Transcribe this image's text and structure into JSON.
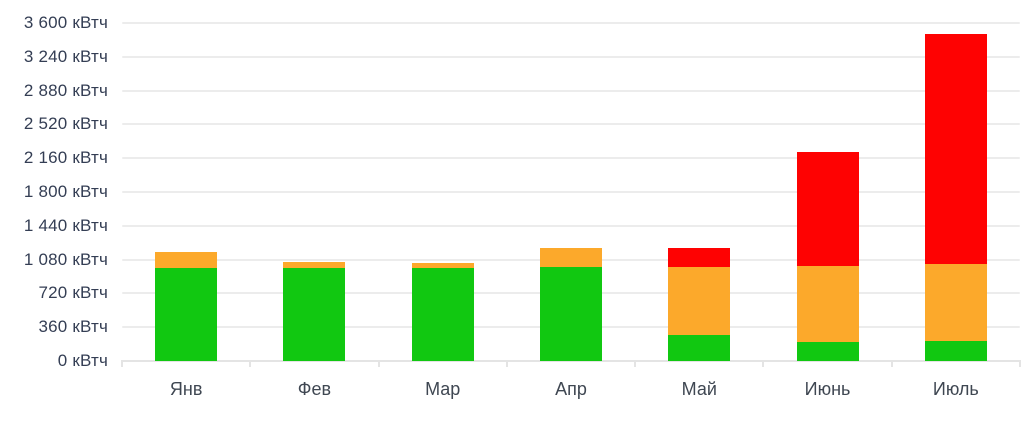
{
  "chart_data": {
    "type": "bar",
    "stacked": true,
    "title": "",
    "unit": "кВтч",
    "categories": [
      "Янв",
      "Фев",
      "Мар",
      "Апр",
      "Май",
      "Июнь",
      "Июль"
    ],
    "series": [
      {
        "name": "green-zone",
        "color": "#11c811",
        "values": [
          990,
          990,
          990,
          1000,
          280,
          200,
          210
        ]
      },
      {
        "name": "orange-zone",
        "color": "#fca92b",
        "values": [
          170,
          60,
          50,
          200,
          720,
          810,
          820
        ]
      },
      {
        "name": "red-zone",
        "color": "#fe0202",
        "values": [
          0,
          0,
          0,
          0,
          200,
          1220,
          2450
        ]
      }
    ],
    "totals": [
      1160,
      1050,
      1040,
      1200,
      1200,
      2230,
      3480
    ],
    "ylim": [
      0,
      3600
    ],
    "y_step": 360,
    "y_tick_labels": [
      "3 600 кВтч",
      "3 240 кВтч",
      "2 880 кВтч",
      "2 520 кВтч",
      "2 160 кВтч",
      "1 800 кВтч",
      "1 440 кВтч",
      "1 080 кВтч",
      "720 кВтч",
      "360 кВтч",
      "0 кВтч"
    ],
    "grid": true,
    "legend": "none"
  },
  "colors": {
    "background": "#ffffff",
    "gridline": "#ececec",
    "axis_line": "#e4e4e4",
    "y_label_text": "#343e54",
    "x_label_text": "#3f4752"
  }
}
